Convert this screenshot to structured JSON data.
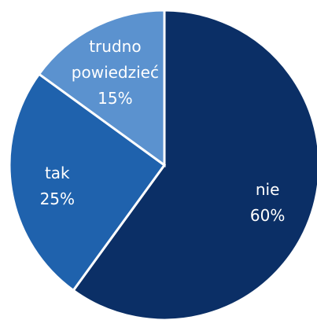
{
  "chart_data": {
    "type": "pie",
    "categories": [
      "nie",
      "tak",
      "trudno powiedzieć"
    ],
    "values": [
      60,
      25,
      15
    ],
    "value_labels": [
      "60%",
      "25%",
      "15%"
    ],
    "colors": [
      "#0b2f66",
      "#1f62ad",
      "#5b92cf"
    ]
  }
}
